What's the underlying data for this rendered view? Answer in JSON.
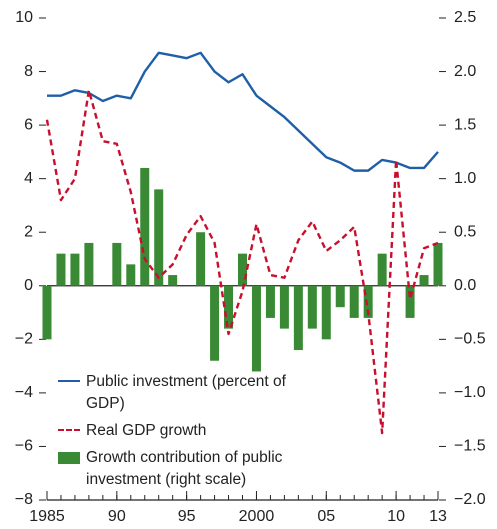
{
  "chart_data": {
    "type": "combo",
    "x": [
      1985,
      1986,
      1987,
      1988,
      1989,
      1990,
      1991,
      1992,
      1993,
      1994,
      1995,
      1996,
      1997,
      1998,
      1999,
      2000,
      2001,
      2002,
      2003,
      2004,
      2005,
      2006,
      2007,
      2008,
      2009,
      2010,
      2011,
      2012,
      2013
    ],
    "series": [
      {
        "name": "Public investment (percent of GDP)",
        "type": "line",
        "color": "#1f5fa8",
        "linestyle": "solid",
        "values": [
          7.1,
          7.1,
          7.3,
          7.2,
          6.9,
          7.1,
          7.0,
          8.0,
          8.7,
          8.6,
          8.5,
          8.7,
          8.0,
          7.6,
          7.9,
          7.1,
          6.7,
          6.3,
          5.8,
          5.3,
          4.8,
          4.6,
          4.3,
          4.3,
          4.7,
          4.6,
          4.4,
          4.4,
          5.0
        ]
      },
      {
        "name": "Real GDP growth",
        "type": "line",
        "color": "#c8102e",
        "linestyle": "dashed",
        "values": [
          6.2,
          3.2,
          4.0,
          7.3,
          5.4,
          5.3,
          3.5,
          1.0,
          0.3,
          0.8,
          1.9,
          2.6,
          1.6,
          -1.8,
          -0.2,
          2.3,
          0.4,
          0.3,
          1.7,
          2.4,
          1.3,
          1.7,
          2.2,
          -1.0,
          -5.5,
          4.7,
          -0.5,
          1.4,
          1.6
        ]
      },
      {
        "name": "Growth contribution of public investment (right scale)",
        "type": "bar",
        "color": "#3a8a35",
        "axis": "y2",
        "values": [
          -0.5,
          0.3,
          0.3,
          0.4,
          0,
          0.4,
          0.2,
          1.1,
          0.9,
          0.1,
          0,
          0.5,
          -0.7,
          -0.4,
          0.3,
          -0.8,
          -0.3,
          -0.4,
          -0.6,
          -0.4,
          -0.5,
          -0.2,
          -0.3,
          -0.3,
          0.3,
          0,
          -0.3,
          0.1,
          0.4
        ]
      }
    ],
    "xlim": [
      1985,
      2013
    ],
    "xticks": [
      1985,
      {
        "value": 1990,
        "label": "90"
      },
      {
        "value": 1995,
        "label": "95"
      },
      2000,
      {
        "value": 2005,
        "label": "05"
      },
      {
        "value": 2010,
        "label": "10"
      },
      {
        "value": 2013,
        "label": "13"
      }
    ],
    "ylim": [
      -8,
      10
    ],
    "yticks": [
      {
        "value": -8,
        "label": "−8"
      },
      {
        "value": -6,
        "label": "−6"
      },
      {
        "value": -4,
        "label": "−4"
      },
      {
        "value": -2,
        "label": "−2"
      },
      0,
      2,
      4,
      6,
      8,
      10
    ],
    "y2lim": [
      -2.0,
      2.5
    ],
    "y2ticks": [
      {
        "value": -2.0,
        "label": "−2.0"
      },
      {
        "value": -1.5,
        "label": "−1.5"
      },
      {
        "value": -1.0,
        "label": "−1.0"
      },
      {
        "value": -0.5,
        "label": "−0.5"
      },
      {
        "value": 0,
        "label": "0.0"
      },
      0.5,
      {
        "value": 1.0,
        "label": "1.0"
      },
      1.5,
      {
        "value": 2.0,
        "label": "2.0"
      },
      2.5
    ]
  }
}
